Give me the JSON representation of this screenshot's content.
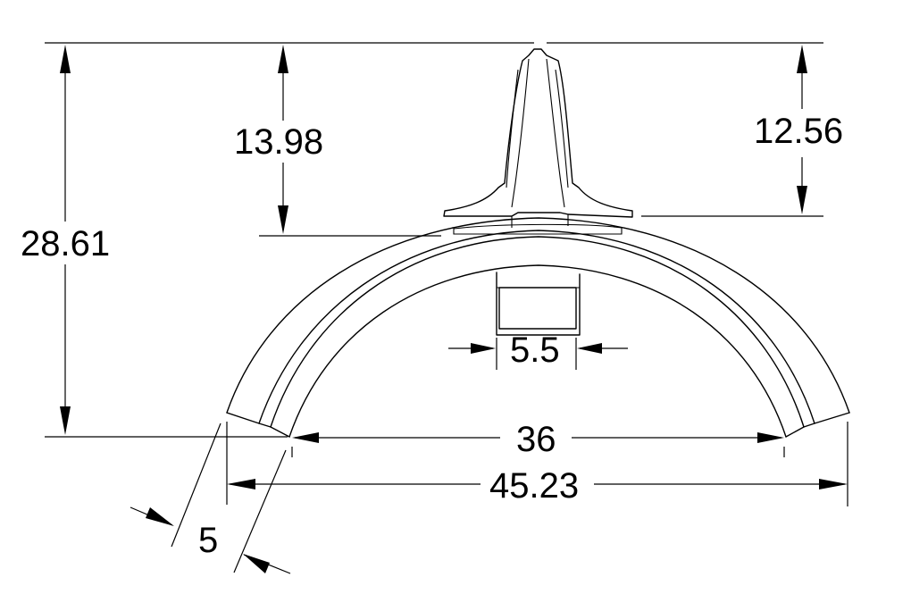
{
  "dimensions": {
    "overall_height": "28.61",
    "spike_height_left": "13.98",
    "spike_height_right": "12.56",
    "channel_width": "5.5",
    "inner_span": "36",
    "outer_span": "45.23",
    "wall_thickness": "5"
  },
  "colors": {
    "line": "#000000",
    "background": "#ffffff"
  }
}
